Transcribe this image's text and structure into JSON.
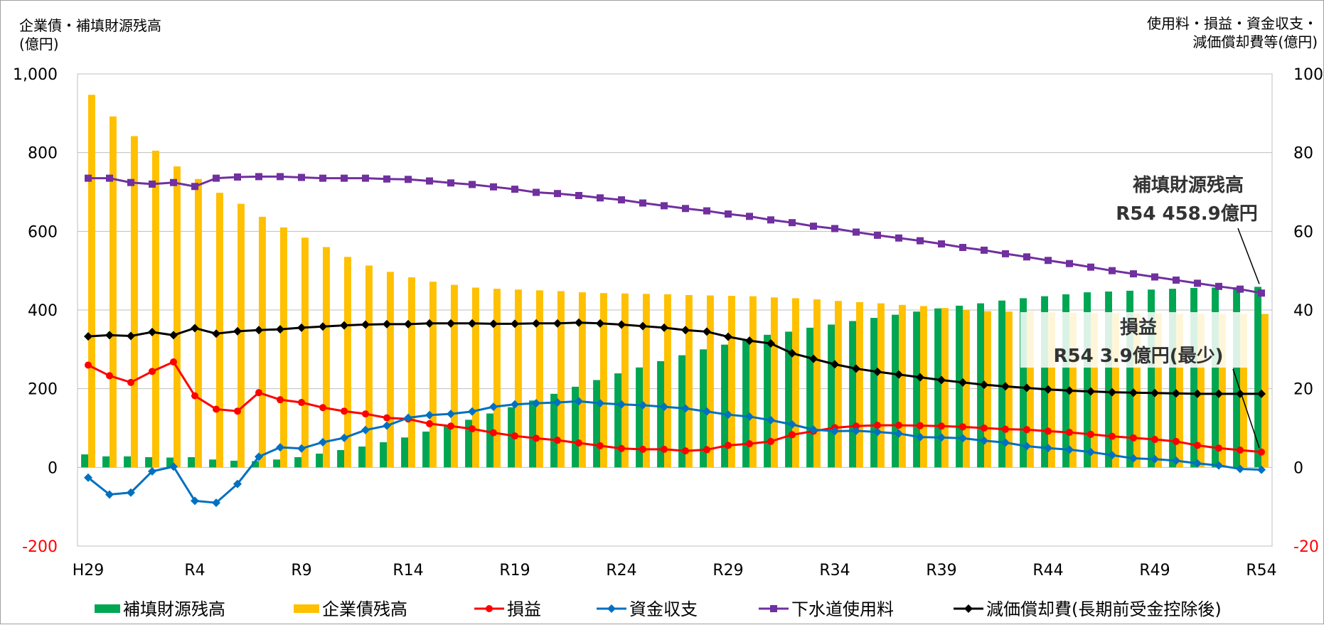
{
  "chart_data": {
    "type": "bar+line",
    "left_axis_title": [
      "企業債・補填財源残高",
      "(億円)"
    ],
    "right_axis_title": [
      "使用料・損益・資金収支・",
      "減価償却費等(億円)"
    ],
    "left_ylim": [
      -200,
      1000
    ],
    "right_ylim": [
      -20,
      100
    ],
    "left_ticks": [
      "1,000",
      "800",
      "600",
      "400",
      "200",
      "0",
      "-200"
    ],
    "right_ticks": [
      "100",
      "80",
      "60",
      "40",
      "20",
      "0",
      "-20"
    ],
    "grid": true,
    "x_categories": [
      "H29",
      "H30",
      "R1",
      "R2",
      "R3",
      "R4",
      "R5",
      "R6",
      "R7",
      "R8",
      "R9",
      "R10",
      "R11",
      "R12",
      "R13",
      "R14",
      "R15",
      "R16",
      "R17",
      "R18",
      "R19",
      "R20",
      "R21",
      "R22",
      "R23",
      "R24",
      "R25",
      "R26",
      "R27",
      "R28",
      "R29",
      "R30",
      "R31",
      "R32",
      "R33",
      "R34",
      "R35",
      "R36",
      "R37",
      "R38",
      "R39",
      "R40",
      "R41",
      "R42",
      "R43",
      "R44",
      "R45",
      "R46",
      "R47",
      "R48",
      "R49",
      "R50",
      "R51",
      "R52",
      "R53",
      "R54"
    ],
    "x_tick_labels": [
      "H29",
      "R4",
      "R9",
      "R14",
      "R19",
      "R24",
      "R29",
      "R34",
      "R39",
      "R44",
      "R49",
      "R54"
    ],
    "series": [
      {
        "name": "補填財源残高",
        "type": "bar",
        "axis": "left",
        "color": "#00a651",
        "values": [
          33,
          28,
          28,
          26,
          25,
          26,
          20,
          17,
          16,
          20,
          26,
          35,
          44,
          53,
          64,
          76,
          91,
          106,
          121,
          137,
          153,
          170,
          187,
          205,
          222,
          239,
          254,
          270,
          285,
          300,
          312,
          325,
          337,
          345,
          355,
          363,
          372,
          380,
          388,
          396,
          404,
          411,
          417,
          424,
          430,
          435,
          440,
          445,
          447,
          449,
          452,
          454,
          456,
          457,
          458,
          458.9
        ]
      },
      {
        "name": "企業債残高",
        "type": "bar",
        "axis": "left",
        "color": "#ffc000",
        "values": [
          947,
          892,
          842,
          805,
          765,
          733,
          698,
          670,
          637,
          610,
          584,
          560,
          535,
          513,
          497,
          483,
          472,
          464,
          457,
          454,
          452,
          450,
          448,
          445,
          443,
          442,
          441,
          440,
          438,
          437,
          436,
          435,
          432,
          430,
          427,
          423,
          420,
          417,
          413,
          410,
          405,
          400,
          397,
          396,
          395,
          394,
          393,
          392,
          392,
          391,
          391,
          390,
          390,
          390,
          390,
          390
        ]
      },
      {
        "name": "損益",
        "type": "line",
        "axis": "right",
        "color": "#ff0000",
        "marker": "circle",
        "values": [
          26,
          23.3,
          21.6,
          24.4,
          26.8,
          18.2,
          14.8,
          14.3,
          19,
          17.2,
          16.5,
          15.2,
          14.3,
          13.6,
          12.6,
          12.3,
          11.1,
          10.5,
          9.8,
          8.8,
          8,
          7.4,
          6.9,
          6.2,
          5.5,
          4.8,
          4.6,
          4.6,
          4.2,
          4.5,
          5.6,
          6,
          6.6,
          8.3,
          9.2,
          10.1,
          10.5,
          10.7,
          10.7,
          10.6,
          10.5,
          10.3,
          10,
          9.7,
          9.6,
          9.2,
          8.9,
          8.4,
          7.9,
          7.5,
          7.1,
          6.6,
          5.6,
          4.9,
          4.4,
          3.9
        ]
      },
      {
        "name": "資金収支",
        "type": "line",
        "axis": "right",
        "color": "#0070c0",
        "marker": "diamond",
        "values": [
          -2.6,
          -6.9,
          -6.4,
          -1,
          0.2,
          -8.5,
          -9,
          -4.2,
          2.7,
          5.1,
          4.8,
          6.4,
          7.5,
          9.5,
          10.6,
          12.6,
          13.3,
          13.6,
          14.2,
          15.4,
          16,
          16.3,
          16.5,
          16.8,
          16.3,
          16,
          15.8,
          15.4,
          15,
          14.2,
          13.4,
          12.9,
          12,
          10.9,
          9.6,
          9.2,
          9.3,
          9,
          8.6,
          7.7,
          7.6,
          7.4,
          6.8,
          6.3,
          5.4,
          4.9,
          4.5,
          3.9,
          3.1,
          2.3,
          2.1,
          1.7,
          1,
          0.5,
          -0.4,
          -0.6
        ]
      },
      {
        "name": "下水道使用料",
        "type": "line",
        "axis": "right",
        "color": "#7030a0",
        "marker": "square",
        "values": [
          73.5,
          73.5,
          72.4,
          72,
          72.4,
          71.4,
          73.5,
          73.8,
          73.9,
          73.9,
          73.7,
          73.5,
          73.5,
          73.5,
          73.3,
          73.2,
          72.8,
          72.3,
          71.9,
          71.3,
          70.7,
          69.9,
          69.6,
          69.1,
          68.5,
          68,
          67.2,
          66.5,
          65.8,
          65.2,
          64.4,
          63.8,
          62.9,
          62.2,
          61.3,
          60.7,
          59.8,
          59,
          58.3,
          57.6,
          56.8,
          55.9,
          55.2,
          54.3,
          53.5,
          52.6,
          51.8,
          50.9,
          50,
          49.2,
          48.4,
          47.6,
          46.8,
          46,
          45.3,
          44.3
        ]
      },
      {
        "name": "減価償却費(長期前受金控除後)",
        "type": "line",
        "axis": "right",
        "color": "#000000",
        "marker": "diamond",
        "values": [
          33.3,
          33.6,
          33.4,
          34.4,
          33.6,
          35.4,
          34,
          34.6,
          34.9,
          35.1,
          35.5,
          35.8,
          36.1,
          36.3,
          36.4,
          36.4,
          36.6,
          36.6,
          36.6,
          36.5,
          36.5,
          36.6,
          36.6,
          36.8,
          36.6,
          36.3,
          35.9,
          35.5,
          34.9,
          34.5,
          33.2,
          32.2,
          31.5,
          29,
          27.6,
          26.2,
          25.1,
          24.3,
          23.6,
          22.9,
          22.2,
          21.6,
          21,
          20.6,
          20.2,
          19.8,
          19.5,
          19.3,
          19.1,
          19,
          18.9,
          18.8,
          18.7,
          18.7,
          18.7,
          18.7
        ]
      }
    ],
    "annotations": [
      {
        "lines": [
          "補填財源残高",
          "R54  458.9億円"
        ]
      },
      {
        "lines": [
          "損益",
          "R54  3.9億円(最少)"
        ]
      }
    ],
    "legend_position": "bottom"
  }
}
